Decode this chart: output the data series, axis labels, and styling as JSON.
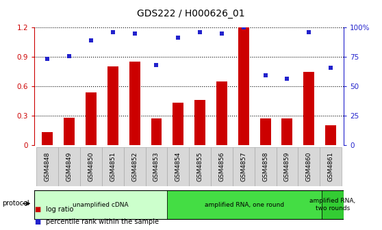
{
  "title": "GDS222 / H000626_01",
  "categories": [
    "GSM4848",
    "GSM4849",
    "GSM4850",
    "GSM4851",
    "GSM4852",
    "GSM4853",
    "GSM4854",
    "GSM4855",
    "GSM4856",
    "GSM4857",
    "GSM4858",
    "GSM4859",
    "GSM4860",
    "GSM4861"
  ],
  "log_ratio": [
    0.13,
    0.28,
    0.54,
    0.8,
    0.85,
    0.27,
    0.43,
    0.46,
    0.65,
    1.2,
    0.27,
    0.27,
    0.75,
    0.2
  ],
  "percentile_raw": [
    0.88,
    0.91,
    1.07,
    1.15,
    1.14,
    0.82,
    1.1,
    1.15,
    1.14,
    1.2,
    0.71,
    0.68,
    1.15,
    0.79
  ],
  "bar_color": "#cc0000",
  "dot_color": "#2222cc",
  "left_ylim": [
    0,
    1.2
  ],
  "left_yticks": [
    0,
    0.3,
    0.6,
    0.9,
    1.2
  ],
  "right_yticks": [
    0,
    25,
    50,
    75,
    100
  ],
  "right_yticklabels": [
    "0",
    "25",
    "50",
    "75",
    "100%"
  ],
  "protocol_groups": [
    {
      "label": "unamplified cDNA",
      "start": 0,
      "end": 5,
      "color": "#ccffcc"
    },
    {
      "label": "amplified RNA, one round",
      "start": 6,
      "end": 12,
      "color": "#44dd44"
    },
    {
      "label": "amplified RNA,\ntwo rounds",
      "start": 13,
      "end": 13,
      "color": "#33cc33"
    }
  ],
  "legend_label_bar": "log ratio",
  "legend_label_dot": "percentile rank within the sample",
  "protocol_label": "protocol",
  "background_color": "#ffffff",
  "tick_color_left": "#cc0000",
  "tick_color_right": "#2222cc",
  "title_fontsize": 10,
  "bar_width": 0.5
}
